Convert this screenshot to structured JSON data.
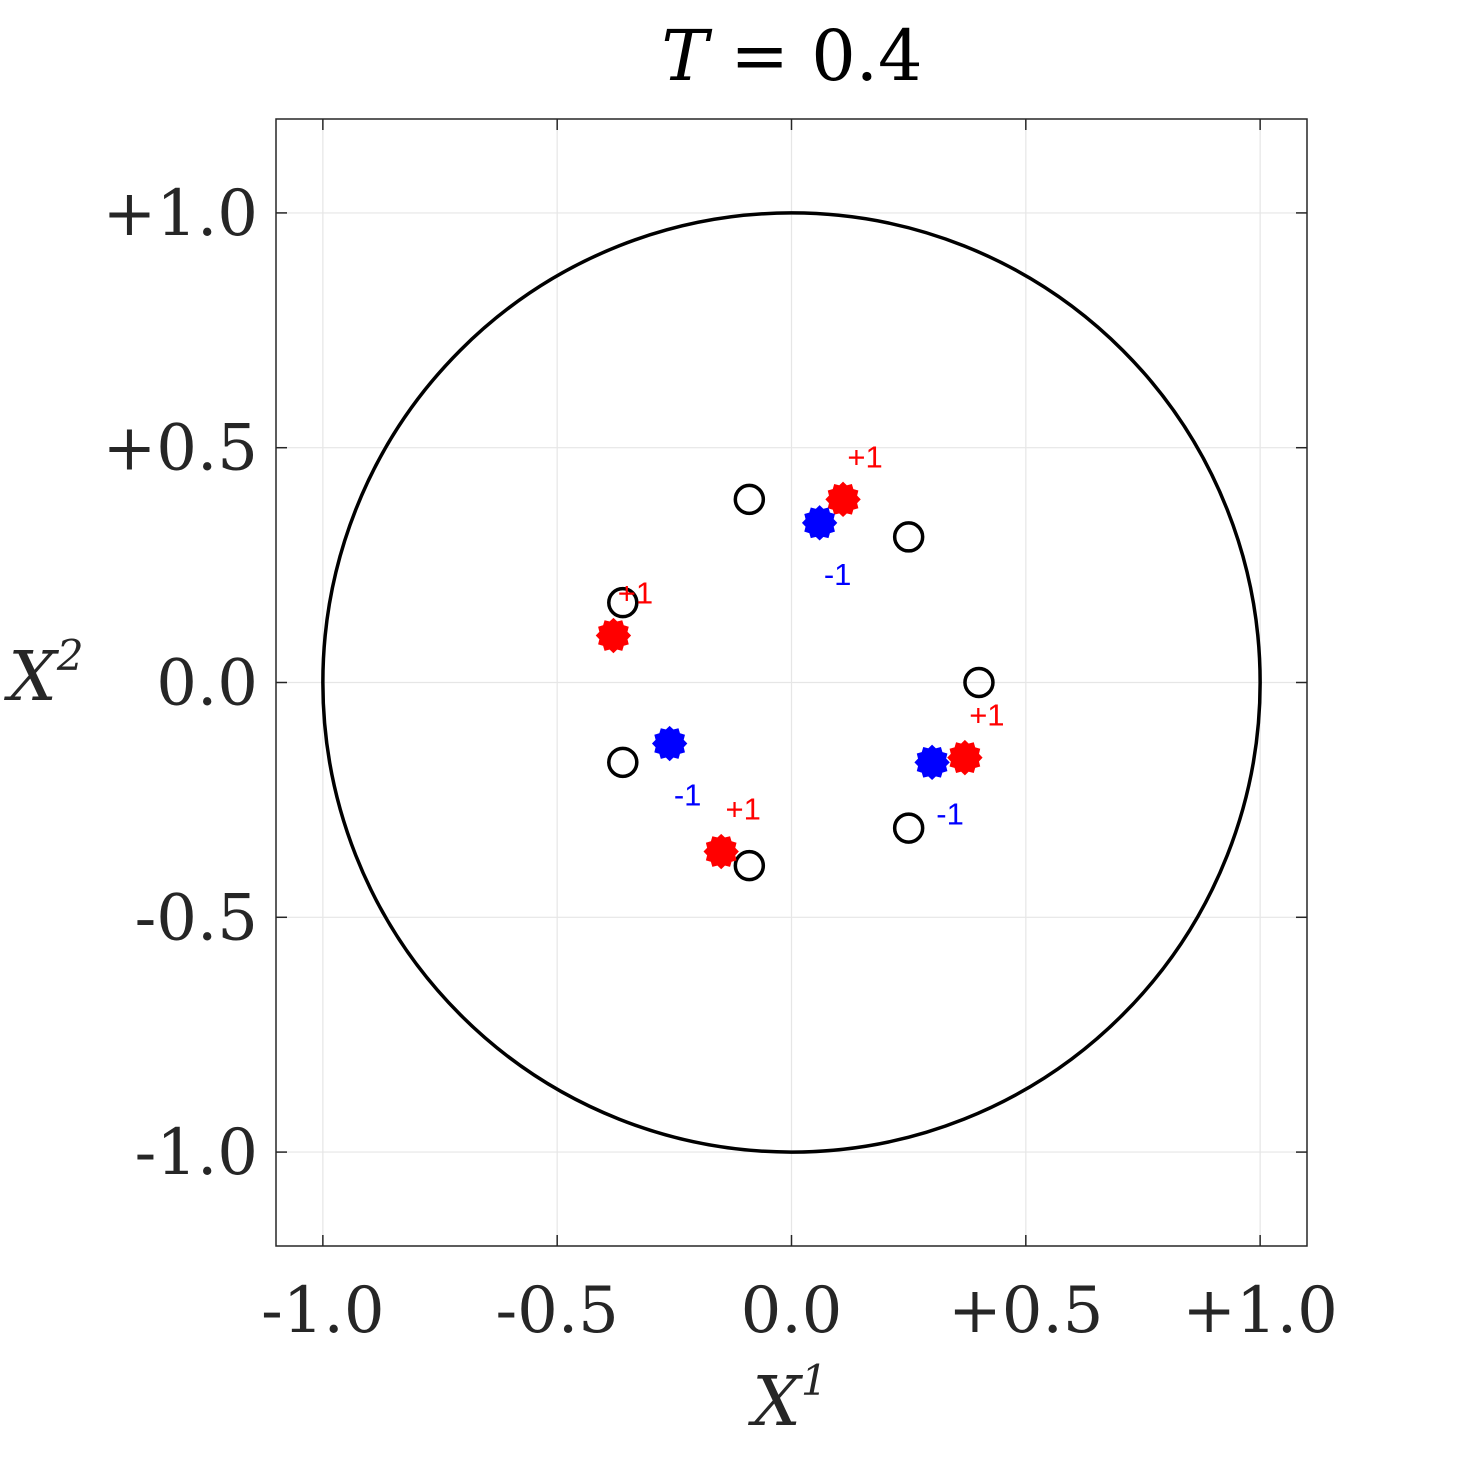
{
  "chart_data": {
    "type": "scatter",
    "title": {
      "variable": "T",
      "relation": " = ",
      "value": "0.4"
    },
    "xlabel": {
      "base": "X",
      "sup": "1"
    },
    "ylabel": {
      "base": "X",
      "sup": "2"
    },
    "xlim": [
      -1.1,
      1.1
    ],
    "ylim": [
      -1.2,
      1.2
    ],
    "xticks": [
      -1.0,
      -0.5,
      0.0,
      0.5,
      1.0
    ],
    "yticks": [
      -1.0,
      -0.5,
      0.0,
      0.5,
      1.0
    ],
    "xtick_labels": [
      "-1.0",
      "-0.5",
      "0.0",
      "+0.5",
      "+1.0"
    ],
    "ytick_labels": [
      "-1.0",
      "-0.5",
      "0.0",
      "+0.5",
      "+1.0"
    ],
    "grid": true,
    "boundary_circle": {
      "center": [
        0,
        0
      ],
      "radius": 1.0,
      "color": "#000000"
    },
    "series": [
      {
        "marker": "open-circle",
        "color": "#000000",
        "points": [
          {
            "x": -0.09,
            "y": 0.39
          },
          {
            "x": 0.25,
            "y": 0.31
          },
          {
            "x": -0.36,
            "y": 0.17
          },
          {
            "x": 0.4,
            "y": 0.0
          },
          {
            "x": -0.36,
            "y": -0.17
          },
          {
            "x": 0.25,
            "y": -0.31
          },
          {
            "x": -0.09,
            "y": -0.39
          }
        ]
      },
      {
        "marker": "filled-star",
        "color": "#ff0000",
        "points": [
          {
            "x": 0.11,
            "y": 0.39,
            "label": "+1"
          },
          {
            "x": -0.38,
            "y": 0.1,
            "label": "+1"
          },
          {
            "x": 0.37,
            "y": -0.16,
            "label": "+1"
          },
          {
            "x": -0.15,
            "y": -0.36,
            "label": "+1"
          }
        ]
      },
      {
        "marker": "filled-star",
        "color": "#0000ff",
        "points": [
          {
            "x": 0.06,
            "y": 0.34,
            "label": "-1"
          },
          {
            "x": -0.26,
            "y": -0.13,
            "label": "-1"
          },
          {
            "x": 0.3,
            "y": -0.17,
            "label": "-1"
          }
        ]
      }
    ]
  }
}
